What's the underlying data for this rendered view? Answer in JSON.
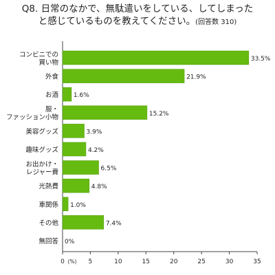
{
  "title": {
    "line1": "Q8. 日常のなかで、無駄遣いをしている、してしまった",
    "line2": "と感じているものを教えてください。",
    "note": "(回答数 310)"
  },
  "chart_data": {
    "type": "bar",
    "orientation": "horizontal",
    "categories": [
      [
        "コンビニでの",
        "買い物"
      ],
      [
        "外食"
      ],
      [
        "お酒"
      ],
      [
        "服・",
        "ファッション小物"
      ],
      [
        "美容グッズ"
      ],
      [
        "趣味グッズ"
      ],
      [
        "お出かけ・",
        "レジャー費"
      ],
      [
        "光熱費"
      ],
      [
        "車関係"
      ],
      [
        "その他"
      ],
      [
        "無回答"
      ]
    ],
    "values": [
      33.5,
      21.9,
      1.6,
      15.2,
      3.9,
      4.2,
      6.5,
      4.8,
      1.0,
      7.4,
      0
    ],
    "value_labels": [
      "33.5%",
      "21.9%",
      "1.6%",
      "15.2%",
      "3.9%",
      "4.2%",
      "6.5%",
      "4.8%",
      "1.0%",
      "7.4%",
      "0%"
    ],
    "xlim": [
      0,
      35
    ],
    "xticks": [
      0,
      5,
      10,
      15,
      20,
      25,
      30,
      35
    ],
    "x_unit": "(%)",
    "bar_color": "#66bb11",
    "bar_edge": "#4f9a0a",
    "grid": false
  }
}
